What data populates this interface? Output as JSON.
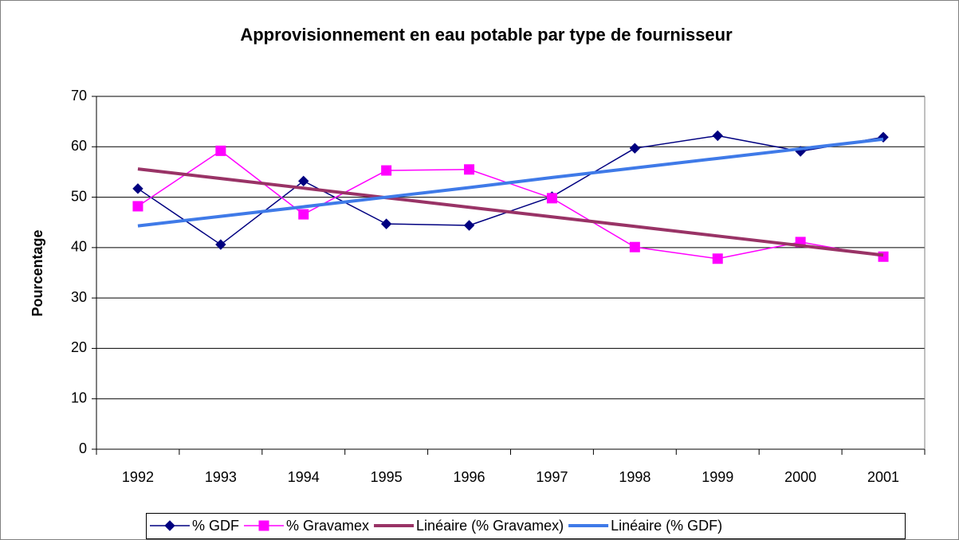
{
  "chart_data": {
    "type": "line",
    "title": "Approvisionnement en eau potable par type de fournisseur",
    "y_label": "Pourcentage",
    "categories": [
      "1992",
      "1993",
      "1994",
      "1995",
      "1996",
      "1997",
      "1998",
      "1999",
      "2000",
      "2001"
    ],
    "series": [
      {
        "name": "% GDF",
        "color": "#000080",
        "marker": "diamond",
        "width": 1.5,
        "values": [
          51.7,
          40.6,
          53.2,
          44.7,
          44.4,
          50.1,
          59.7,
          62.2,
          59.1,
          61.9
        ]
      },
      {
        "name": "% Gravamex",
        "color": "#ff00ff",
        "marker": "square",
        "width": 1.5,
        "values": [
          48.2,
          59.2,
          46.6,
          55.3,
          55.5,
          49.8,
          40.1,
          37.8,
          41.1,
          38.2
        ]
      },
      {
        "name": "Linéaire (% Gravamex)",
        "color": "#993366",
        "marker": "none",
        "width": 4,
        "values": [
          55.6,
          53.7,
          51.8,
          49.9,
          48.0,
          46.1,
          44.2,
          42.3,
          40.4,
          38.5
        ]
      },
      {
        "name": "Linéaire (% GDF)",
        "color": "#3f7ae8",
        "marker": "none",
        "width": 4,
        "values": [
          44.3,
          46.2,
          48.1,
          50.0,
          51.9,
          53.9,
          55.8,
          57.7,
          59.6,
          61.5
        ]
      }
    ],
    "ylim": [
      0,
      70
    ],
    "yticks": [
      0,
      10,
      20,
      30,
      40,
      50,
      60,
      70
    ],
    "grid": true,
    "legend": "bottom"
  }
}
